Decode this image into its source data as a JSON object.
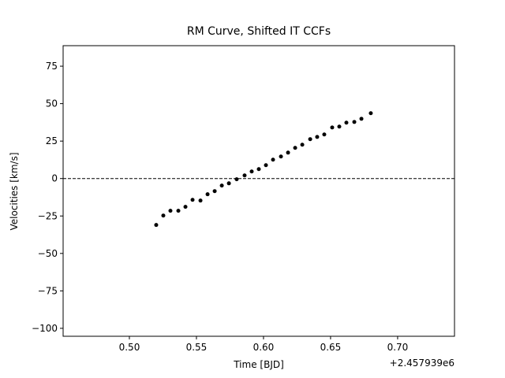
{
  "chart_data": {
    "type": "scatter",
    "title": "RM Curve, Shifted IT CCFs",
    "xlabel": "Time [BJD]",
    "ylabel": "Velocities [km/s]",
    "x_offset_label": "+2.457939e6",
    "color": "#000000",
    "hline": 0,
    "xlim": [
      0.4506,
      0.7424
    ],
    "ylim": [
      -105.3,
      88.7
    ],
    "xticks": [
      {
        "value": 0.5,
        "label": "0.50"
      },
      {
        "value": 0.55,
        "label": "0.55"
      },
      {
        "value": 0.6,
        "label": "0.60"
      },
      {
        "value": 0.65,
        "label": "0.65"
      },
      {
        "value": 0.7,
        "label": "0.70"
      }
    ],
    "yticks": [
      {
        "value": -100,
        "label": "−100"
      },
      {
        "value": -75,
        "label": "−75"
      },
      {
        "value": -50,
        "label": "−50"
      },
      {
        "value": -25,
        "label": "−25"
      },
      0,
      25,
      50,
      75
    ],
    "x": [
      0.52,
      0.5253,
      0.5306,
      0.5365,
      0.5418,
      0.5471,
      0.553,
      0.5583,
      0.5636,
      0.5689,
      0.5742,
      0.58,
      0.5859,
      0.5912,
      0.5965,
      0.6018,
      0.6071,
      0.613,
      0.6183,
      0.6236,
      0.6289,
      0.6348,
      0.64,
      0.6453,
      0.6512,
      0.6565,
      0.6618,
      0.6677,
      0.673,
      0.68
    ],
    "values": [
      -31,
      -24.7,
      -21.5,
      -21.5,
      -18.9,
      -14.2,
      -14.7,
      -10.5,
      -8.4,
      -4.7,
      -3.2,
      -0.5,
      2.1,
      4.7,
      6.3,
      8.9,
      12.6,
      14.7,
      17.3,
      20.5,
      22.6,
      26.3,
      27.8,
      29.4,
      34.1,
      34.7,
      37.3,
      37.8,
      39.9,
      43.6
    ]
  }
}
